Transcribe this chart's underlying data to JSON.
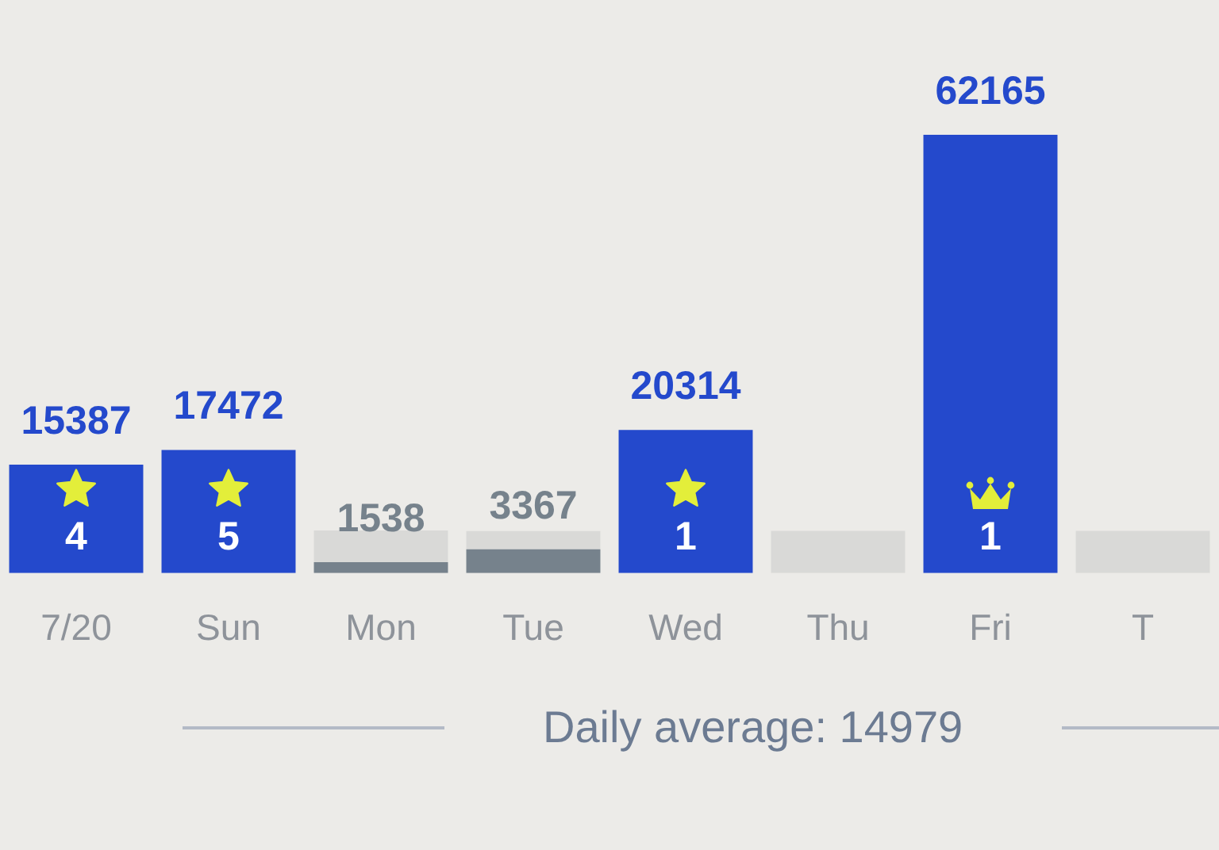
{
  "chart_data": {
    "type": "bar",
    "stacked": true,
    "tick_labels": "x",
    "categories": [
      "7/20",
      "Sun",
      "Mon",
      "Tue",
      "Wed",
      "Thu",
      "Fri",
      "T"
    ],
    "series": [
      {
        "values": [
          15387,
          17472,
          1538,
          3367,
          20314,
          null,
          62165,
          null
        ],
        "colors": [
          "#2449cc",
          "#2449cc",
          "#76828c",
          "#76828c",
          "#2449cc",
          "#2449cc",
          "#2449cc",
          "#2449cc"
        ],
        "value_labels": [
          "15387",
          "17472",
          "1538",
          "3367",
          "20314",
          null,
          "62165",
          null
        ]
      },
      {
        "color": "#d9d9d7",
        "values": [
          null,
          null,
          4500,
          2600,
          null,
          6000,
          null,
          6000
        ]
      }
    ],
    "annotations": [
      "4",
      "5",
      "1",
      "1",
      "Daily average: 14979"
    ]
  }
}
